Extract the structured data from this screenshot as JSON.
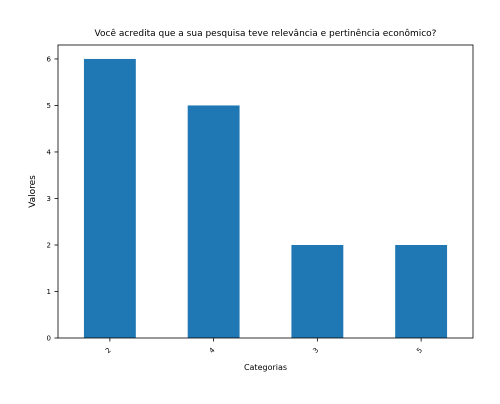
{
  "chart_data": {
    "type": "bar",
    "title": "Você acredita que a sua pesquisa teve relevância e pertinência econômico?",
    "xlabel": "Categorias",
    "ylabel": "Valores",
    "categories": [
      "2",
      "4",
      "3",
      "5"
    ],
    "values": [
      6,
      5,
      2,
      2
    ],
    "ylim": [
      0,
      6.3
    ],
    "yticks": [
      0,
      1,
      2,
      3,
      4,
      5,
      6
    ],
    "grid": false,
    "bar_color": "#1f77b4"
  }
}
